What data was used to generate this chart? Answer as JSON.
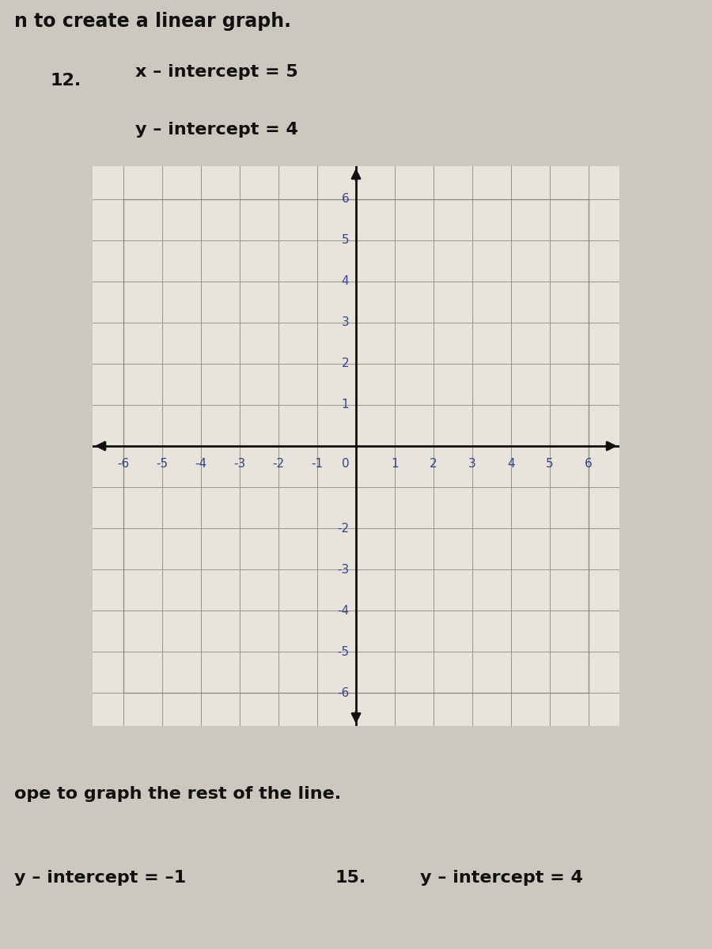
{
  "page_bg": "#ccc8c0",
  "graph_bg": "#e8e4dc",
  "title_text": "n to create a linear graph.",
  "problem_number": "12.",
  "x_intercept_label": "x – intercept = 5",
  "y_intercept_label": "y – intercept = 4",
  "bottom_text1": "ope to graph the rest of the line.",
  "bottom_label1": "y – intercept = –1",
  "bottom_number": "15.",
  "bottom_label2": "y – intercept = 4",
  "xlim": [
    -6.8,
    6.8
  ],
  "ylim": [
    -6.8,
    6.8
  ],
  "grid_ticks": [
    -6,
    -5,
    -4,
    -3,
    -2,
    -1,
    0,
    1,
    2,
    3,
    4,
    5,
    6
  ],
  "xtick_labels": [
    -6,
    -5,
    -4,
    -3,
    -2,
    -1,
    0,
    1,
    2,
    3,
    4,
    5,
    6
  ],
  "ytick_labels_pos": [
    6,
    5,
    4,
    3,
    2,
    1,
    -2,
    -3,
    -4,
    -5,
    -6
  ],
  "grid_color": "#999990",
  "border_color": "#888880",
  "axis_color": "#111111",
  "tick_label_color": "#334488",
  "font_size_title": 17,
  "font_size_problem": 16,
  "font_size_ticks": 11,
  "font_size_bottom": 16
}
